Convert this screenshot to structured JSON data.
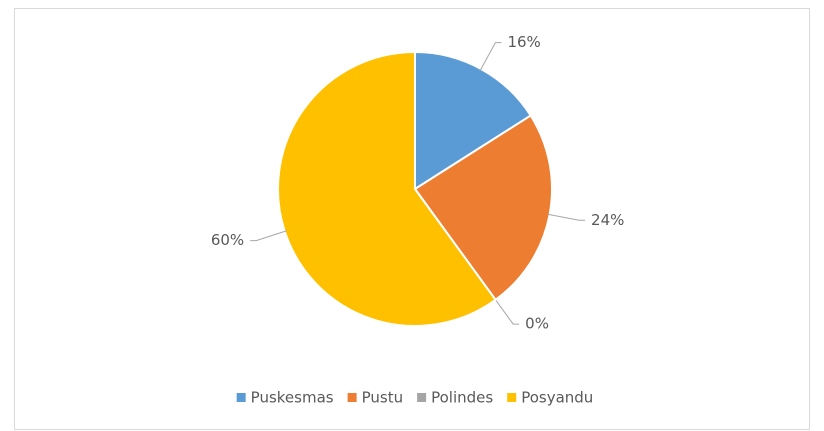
{
  "chart_data": {
    "type": "pie",
    "categories": [
      "Puskesmas",
      "Pustu",
      "Polindes",
      "Posyandu"
    ],
    "values": [
      16,
      24,
      0,
      60
    ],
    "value_labels": [
      "16%",
      "24%",
      "0%",
      "60%"
    ],
    "colors": [
      "#5b9bd5",
      "#ed7d31",
      "#a5a5a5",
      "#ffc000"
    ],
    "legend": "bottom"
  }
}
